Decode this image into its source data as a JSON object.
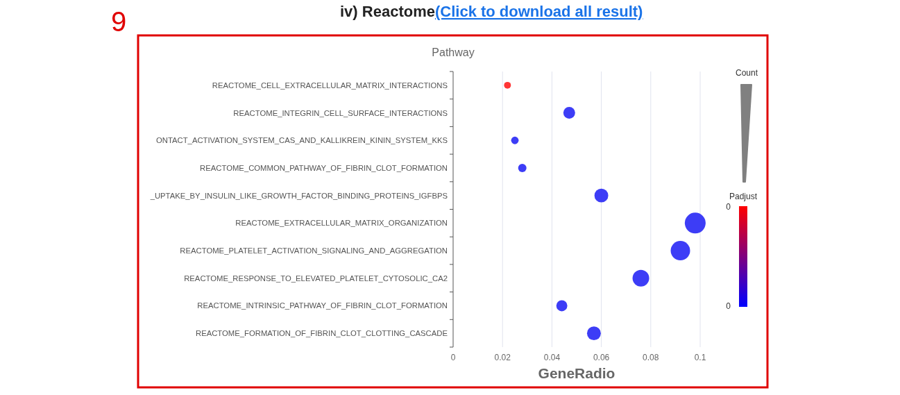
{
  "chart_data": {
    "type": "bubble",
    "title": "iv) Reactome",
    "subtitle": "(Click to download all result)",
    "ylabel": "Pathway",
    "xlabel": "GeneRadio",
    "legend_title": "Count",
    "clabel": "Padjust",
    "annotations": [
      "9",
      "0",
      "0"
    ],
    "categories": [
      "REACTOME_CELL_EXTRACELLULAR_MATRIX_INTERACTIONS",
      "REACTOME_INTEGRIN_CELL_SURFACE_INTERACTIONS",
      "ONTACT_ACTIVATION_SYSTEM_CAS_AND_KALLIKREIN_KININ_SYSTEM_KKS",
      "REACTOME_COMMON_PATHWAY_OF_FIBRIN_CLOT_FORMATION",
      "_UPTAKE_BY_INSULIN_LIKE_GROWTH_FACTOR_BINDING_PROTEINS_IGFBPS",
      "REACTOME_EXTRACELLULAR_MATRIX_ORGANIZATION",
      "REACTOME_PLATELET_ACTIVATION_SIGNALING_AND_AGGREGATION",
      "REACTOME_RESPONSE_TO_ELEVATED_PLATELET_CYTOSOLIC_CA2",
      "REACTOME_INTRINSIC_PATHWAY_OF_FIBRIN_CLOT_FORMATION",
      "REACTOME_FORMATION_OF_FIBRIN_CLOT_CLOTTING_CASCADE"
    ],
    "values": [
      0.022,
      0.047,
      0.025,
      0.028,
      0.06,
      0.098,
      0.092,
      0.076,
      0.044,
      0.057
    ],
    "sizes": [
      0.11,
      0.32,
      0.13,
      0.16,
      0.44,
      1,
      0.87,
      0.64,
      0.28,
      0.44
    ],
    "colors": [
      "#ff2a2a",
      "#3333f5",
      "#3333f5",
      "#3333f5",
      "#3333f5",
      "#3333f5",
      "#3333f5",
      "#3333f5",
      "#3333f5",
      "#3333f5"
    ],
    "orientation": "horizontal",
    "xlim": [
      0,
      0.1
    ],
    "xticks": [
      0,
      0.02,
      0.04,
      0.06,
      0.08,
      0.1
    ],
    "grid": "x"
  }
}
